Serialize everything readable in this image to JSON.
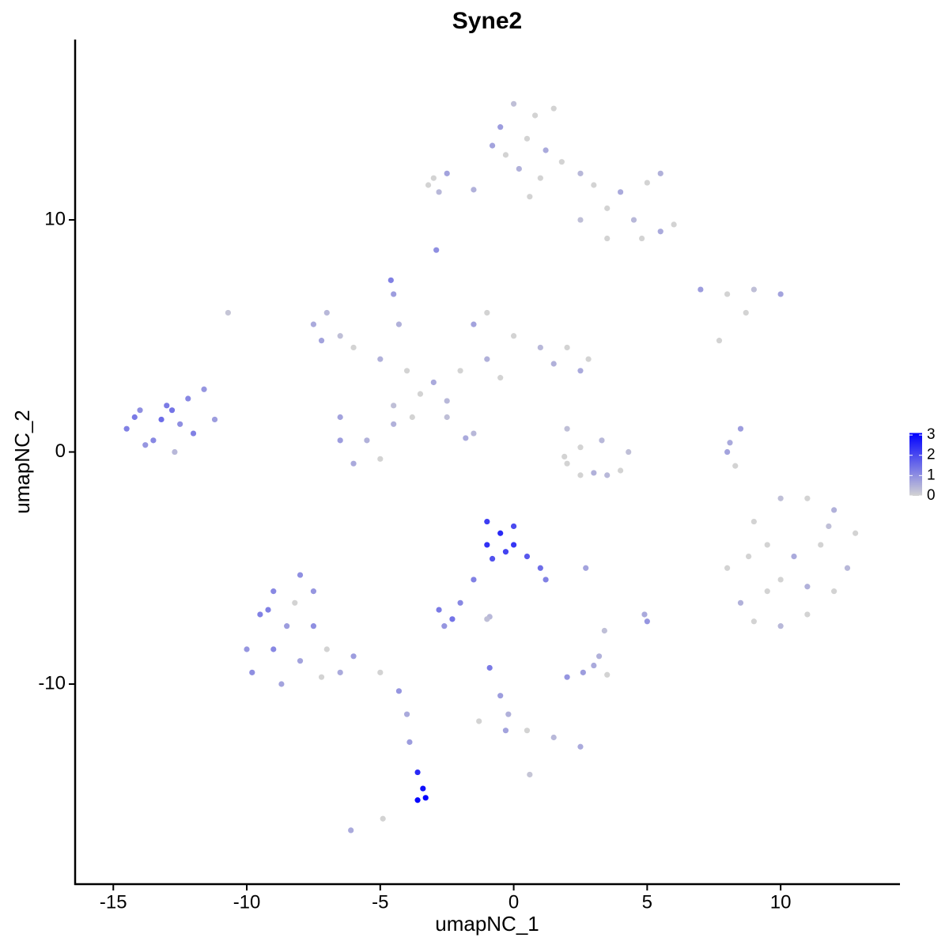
{
  "chart_data": {
    "type": "scatter",
    "title": "Syne2",
    "x_label": "umapNC_1",
    "y_label": "umapNC_2",
    "xlim": [
      -16.43,
      14.47
    ],
    "ylim": [
      -18.62,
      17.77
    ],
    "xticks": [
      -15,
      -10,
      -5,
      0,
      5,
      10
    ],
    "yticks": [
      -10,
      0,
      10
    ],
    "color_low": "#d3d3d3",
    "color_high": "#0000ff",
    "color_lim": [
      0,
      3.1
    ],
    "color_ticks": [
      0,
      1,
      2,
      3
    ],
    "x": [
      -14.5,
      -14,
      -13.5,
      -13,
      -12.5,
      -12,
      -13.8,
      -13.2,
      -12.2,
      -11.6,
      -11.2,
      -12.7,
      -14.2,
      -12.8,
      0,
      0.8,
      -0.5,
      0.5,
      1.2,
      -0.3,
      0.2,
      1.0,
      0.6,
      1.5,
      -0.8,
      1.8,
      2.5,
      3.0,
      4.0,
      5.0,
      5.5,
      3.5,
      4.5,
      5.5,
      6.0,
      4.8,
      -3,
      -2.5,
      -1.5,
      -2.8,
      -3.2,
      2.5,
      3.5,
      -2.9,
      -4.6,
      -10.7,
      7,
      8,
      9,
      10,
      8.7,
      7.7,
      -7.5,
      -7.0,
      -6.5,
      -7.2,
      -6,
      -5,
      -4,
      -3,
      -2,
      -1,
      -1.5,
      -1.0,
      0,
      1,
      2,
      2.5,
      2.8,
      1.5,
      -0.5,
      -4.5,
      -4.3,
      -3.5,
      -2.5,
      -3.8,
      -4.5,
      -6.5,
      -5.5,
      -6.5,
      -5.0,
      -6.0,
      -4.5,
      -1.5,
      -2.5,
      -1.8,
      2,
      2.5,
      3.3,
      2,
      3,
      4,
      4.3,
      3.5,
      2.5,
      1.9,
      8.5,
      8.0,
      8.3,
      8.1,
      8,
      9,
      10,
      11,
      12,
      12.8,
      12.5,
      12,
      11,
      10,
      9,
      8.5,
      9.5,
      10.5,
      11.5,
      10,
      11,
      9.5,
      11.8,
      8.8,
      -1,
      -0.5,
      0,
      -1,
      -0.3,
      0.5,
      1,
      1.2,
      -0.8,
      0,
      -1.5,
      -2,
      -2.8,
      -2.3,
      -2.6,
      -0.9,
      -9,
      -8,
      -7.5,
      -9.5,
      -8.5,
      -7.5,
      -10,
      -9,
      -8,
      -7,
      -6,
      -5,
      -4.3,
      -9.8,
      -8.7,
      -7.2,
      -6.5,
      -9.2,
      -8.2,
      -3.6,
      -3.4,
      -3.6,
      -3.3,
      -4,
      -3.9,
      -6.1,
      -4.9,
      0.6,
      -0.9,
      -0.5,
      -0.2,
      -0.3,
      0.5,
      1.5,
      2.5,
      -1.3,
      2.6,
      3.0,
      3.5,
      3.2,
      2.0,
      2.7,
      5.0,
      4.9,
      3.4,
      -1.0
    ],
    "y": [
      1.0,
      1.8,
      0.5,
      2.0,
      1.2,
      0.8,
      0.3,
      1.4,
      2.3,
      2.7,
      1.4,
      0.0,
      1.5,
      1.8,
      15.0,
      14.5,
      14.0,
      13.5,
      13.0,
      12.8,
      12.2,
      11.8,
      11.0,
      14.8,
      13.2,
      12.5,
      12.0,
      11.5,
      11.2,
      11.6,
      12.0,
      10.5,
      10.0,
      9.5,
      9.8,
      9.2,
      11.8,
      12.0,
      11.3,
      11.2,
      11.5,
      10.0,
      9.2,
      8.7,
      7.4,
      6.0,
      7.0,
      6.8,
      7.0,
      6.8,
      6.0,
      4.8,
      5.5,
      6.0,
      5.0,
      4.8,
      4.5,
      4,
      3.5,
      3,
      3.5,
      4.0,
      5.5,
      6.0,
      5.0,
      4.5,
      4.5,
      3.5,
      4.0,
      3.8,
      3.2,
      6.8,
      5.5,
      2.5,
      2.2,
      1.5,
      2,
      1.5,
      0.5,
      0.5,
      -0.3,
      -0.5,
      1.2,
      0.8,
      1.5,
      0.6,
      1,
      0.2,
      0.5,
      -0.5,
      -0.9,
      -0.8,
      0,
      -1.0,
      -1.0,
      -0.2,
      1.0,
      0,
      -0.6,
      0.4,
      -5,
      -3,
      -2,
      -2,
      -2.5,
      -3.5,
      -5,
      -6,
      -7,
      -7.5,
      -7.3,
      -6.5,
      -4,
      -4.5,
      -4,
      -5.5,
      -5.8,
      -6,
      -3.2,
      -4.5,
      -3,
      -3.5,
      -3.2,
      -4.0,
      -4.3,
      -4.5,
      -5,
      -5.5,
      -4.6,
      -4.0,
      -5.5,
      -6.5,
      -6.8,
      -7.2,
      -7.5,
      -7.1,
      -6,
      -5.3,
      -6,
      -7,
      -7.5,
      -7.5,
      -8.5,
      -8.5,
      -9,
      -8.5,
      -8.8,
      -9.5,
      -10.3,
      -9.5,
      -10,
      -9.7,
      -9.5,
      -6.8,
      -6.5,
      -13.8,
      -14.5,
      -15.0,
      -14.9,
      -11.3,
      -12.5,
      -16.3,
      -15.8,
      -13.9,
      -9.3,
      -10.5,
      -11.3,
      -12,
      -12,
      -12.3,
      -12.7,
      -11.6,
      -9.5,
      -9.2,
      -9.6,
      -8.8,
      -9.7,
      -5.0,
      -7.3,
      -7.0,
      -7.7,
      -7.2
    ],
    "values": [
      1.2,
      1.0,
      1.1,
      1.3,
      1.0,
      1.2,
      0.9,
      1.5,
      1.1,
      0.9,
      0.8,
      0.4,
      1.3,
      1.4,
      0.3,
      0,
      0.8,
      0,
      0.6,
      0,
      0.5,
      0,
      0,
      0,
      0.7,
      0,
      0.4,
      0,
      0.6,
      0,
      0.5,
      0,
      0.4,
      0.6,
      0,
      0,
      0,
      0.7,
      0.5,
      0.4,
      0,
      0.3,
      0,
      1.0,
      1.2,
      0.2,
      0.8,
      0,
      0.3,
      0.7,
      0,
      0,
      0.6,
      0.4,
      0.3,
      0.7,
      0,
      0.5,
      0,
      0.6,
      0,
      0.5,
      0.7,
      0,
      0,
      0.4,
      0,
      0.6,
      0,
      0.5,
      0,
      0.8,
      0.5,
      0,
      0.4,
      0,
      0.3,
      0.7,
      0.5,
      0.8,
      0,
      0.6,
      0.5,
      0.4,
      0.3,
      0.6,
      0.3,
      0,
      0.4,
      0,
      0.5,
      0,
      0.3,
      0.4,
      0,
      0,
      0.8,
      0.7,
      0,
      0.6,
      0,
      0,
      0.3,
      0,
      0.5,
      0,
      0.4,
      0,
      0,
      0.4,
      0,
      0.5,
      0,
      0.6,
      0,
      0,
      0.5,
      0,
      0.3,
      0,
      2.2,
      2.5,
      2.0,
      2.4,
      2.1,
      1.8,
      1.5,
      1.2,
      1.9,
      2.3,
      1.2,
      1.1,
      1.3,
      1.4,
      0.9,
      0.4,
      1.1,
      1.0,
      0.9,
      1.2,
      0.8,
      1.0,
      0.9,
      1.1,
      0.7,
      0,
      0.8,
      0,
      0.9,
      1.0,
      0.7,
      0,
      0.6,
      1.2,
      0,
      2.5,
      2.9,
      3.0,
      3.1,
      0.6,
      0.8,
      0.6,
      0,
      0.2,
      1.3,
      0.8,
      0.5,
      0.7,
      0,
      0.4,
      0.6,
      0,
      0.8,
      0.6,
      0,
      0.5,
      0.9,
      0.7,
      0.9,
      0.6,
      0.3,
      0.3
    ]
  }
}
